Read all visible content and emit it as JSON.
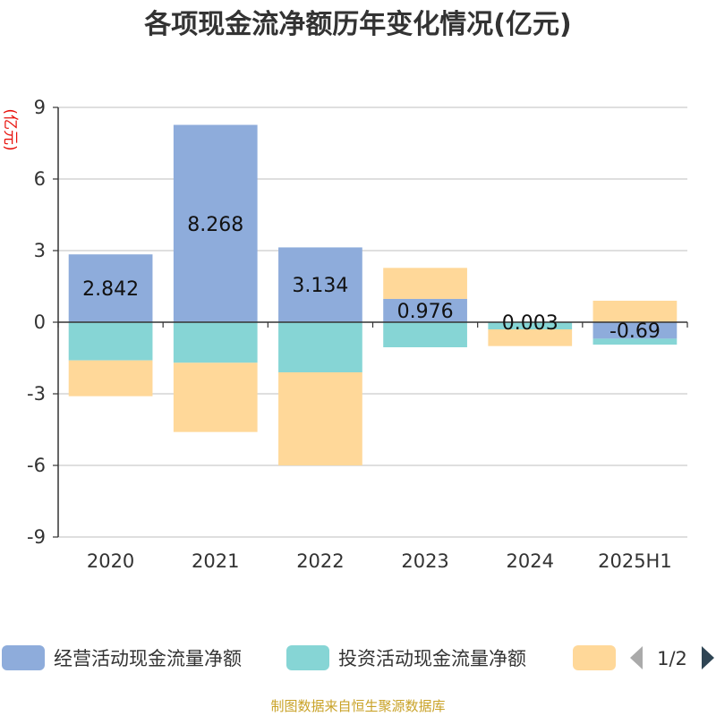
{
  "chart_data": {
    "type": "bar",
    "stacked": true,
    "title": "各项现金流净额历年变化情况(亿元)",
    "ylabel": "(亿元)",
    "xlabel": "",
    "categories": [
      "2020",
      "2021",
      "2022",
      "2023",
      "2024",
      "2025H1"
    ],
    "ylim": [
      -9,
      9
    ],
    "yticks": [
      9,
      6,
      3,
      0,
      -3,
      -6,
      -9
    ],
    "grid": true,
    "series": [
      {
        "name": "经营活动现金流量净额",
        "color": "#8eacdb",
        "values": [
          2.842,
          8.268,
          3.134,
          0.976,
          0.003,
          -0.69
        ],
        "labels": [
          "2.842",
          "8.268",
          "3.134",
          "0.976",
          "0.003",
          "-0.69"
        ]
      },
      {
        "name": "投资活动现金流量净额",
        "color": "#86d5d5",
        "values": [
          -1.6,
          -1.7,
          -2.1,
          -1.05,
          -0.3,
          -0.25
        ]
      },
      {
        "name": "",
        "color": "#ffd899",
        "values": [
          -1.5,
          -2.9,
          -3.9,
          1.3,
          -0.7,
          0.9
        ]
      }
    ],
    "legend": {
      "position": "bottom",
      "page": "1/2"
    }
  },
  "source": "制图数据来自恒生聚源数据库"
}
